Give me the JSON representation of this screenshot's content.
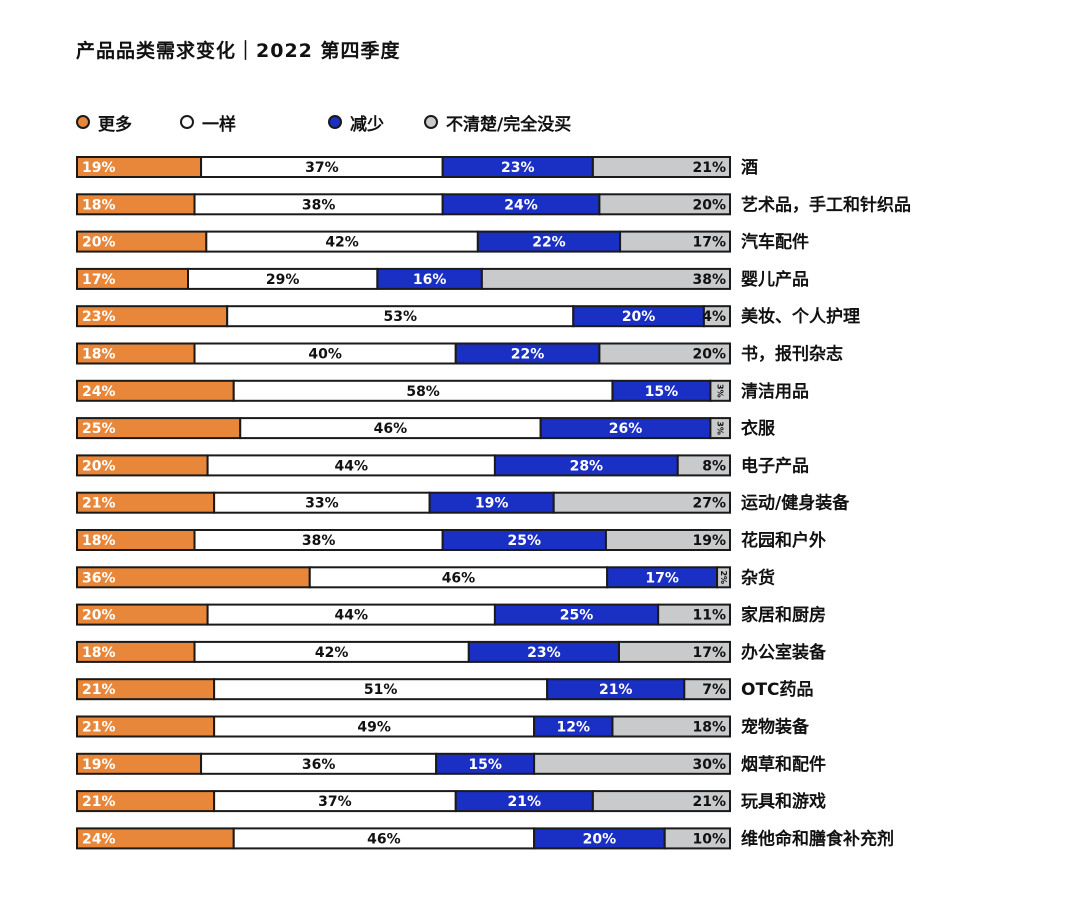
{
  "title": "产品品类需求变化｜2022 第四季度",
  "colors": {
    "more": "#E8873A",
    "same": "#FFFFFF",
    "less": "#1A2FC4",
    "unsure": "#C8CACC",
    "border": "#1A1A1A"
  },
  "legend": [
    {
      "key": "more",
      "label": "更多"
    },
    {
      "key": "same",
      "label": "一样"
    },
    {
      "key": "less",
      "label": "减少"
    },
    {
      "key": "unsure",
      "label": "不清楚/完全没买"
    }
  ],
  "chart_data": {
    "type": "bar",
    "orientation": "horizontal",
    "stacked": "100%",
    "unit": "%",
    "categories": [
      "酒",
      "艺术品，手工和针织品",
      "汽车配件",
      "婴儿产品",
      "美妆、个人护理",
      "书，报刊杂志",
      "清洁用品",
      "衣服",
      "电子产品",
      "运动/健身装备",
      "花园和户外",
      "杂货",
      "家居和厨房",
      "办公室装备",
      "OTC药品",
      "宠物装备",
      "烟草和配件",
      "玩具和游戏",
      "维他命和膳食补充剂"
    ],
    "series": [
      {
        "key": "more",
        "name": "更多",
        "values": [
          19,
          18,
          20,
          17,
          23,
          18,
          24,
          25,
          20,
          21,
          18,
          36,
          20,
          18,
          21,
          21,
          19,
          21,
          24
        ]
      },
      {
        "key": "same",
        "name": "一样",
        "values": [
          37,
          38,
          42,
          29,
          53,
          40,
          58,
          46,
          44,
          33,
          38,
          46,
          44,
          42,
          51,
          49,
          36,
          37,
          46
        ]
      },
      {
        "key": "less",
        "name": "减少",
        "values": [
          23,
          24,
          22,
          16,
          20,
          22,
          15,
          26,
          28,
          19,
          25,
          17,
          25,
          23,
          21,
          12,
          15,
          21,
          20
        ]
      },
      {
        "key": "unsure",
        "name": "不清楚/完全没买",
        "values": [
          21,
          20,
          17,
          38,
          4,
          20,
          3,
          3,
          8,
          27,
          19,
          2,
          11,
          17,
          7,
          18,
          30,
          21,
          10
        ]
      }
    ],
    "legend_position": "top-left"
  }
}
